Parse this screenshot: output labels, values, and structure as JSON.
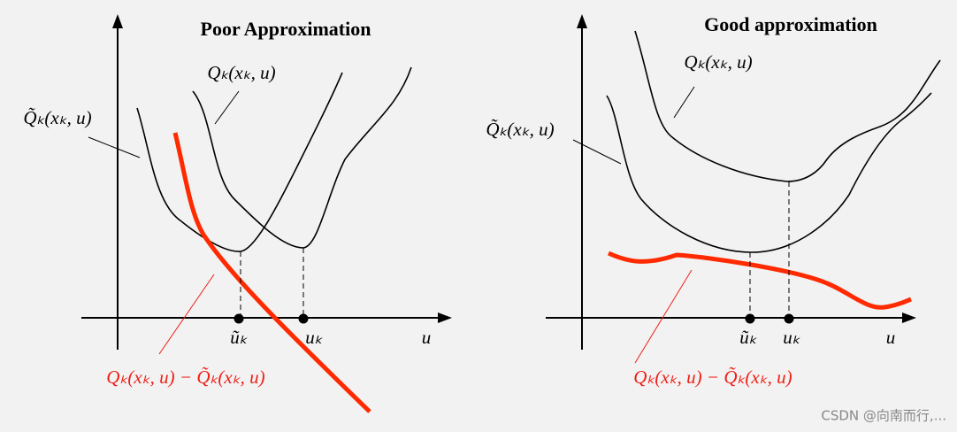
{
  "panels": [
    {
      "title": "Poor Approximation",
      "q_label": "Qₖ(xₖ, u)",
      "q_tilde_label": "Q̃ₖ(xₖ, u)",
      "diff_label": "Qₖ(xₖ, u) − Q̃ₖ(xₖ, u)",
      "u_tilde": "ũₖ",
      "u_k": "uₖ",
      "axis_label": "u"
    },
    {
      "title": "Good approximation",
      "q_label": "Qₖ(xₖ, u)",
      "q_tilde_label": "Q̃ₖ(xₖ, u)",
      "diff_label": "Qₖ(xₖ, u) − Q̃ₖ(xₖ, u)",
      "u_tilde": "ũₖ",
      "u_k": "uₖ",
      "axis_label": "u"
    }
  ],
  "watermark": "CSDN @向南而行,..."
}
